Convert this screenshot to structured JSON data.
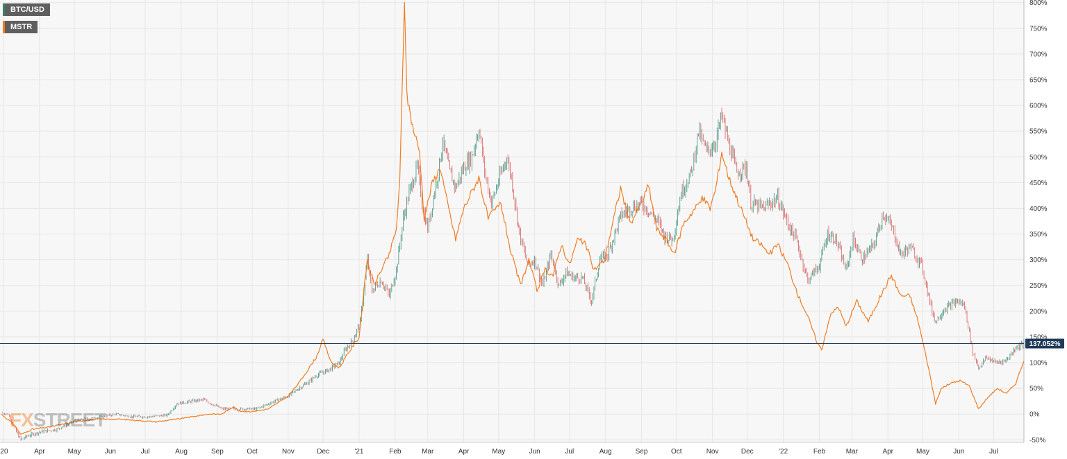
{
  "legend": [
    {
      "label": "BTC/USD",
      "color": "#3c7d6f"
    },
    {
      "label": "MSTR",
      "color": "#ef7d22"
    }
  ],
  "watermark": {
    "part1": "FX",
    "part2": "STREET"
  },
  "current_value_label": "137.052%",
  "colors": {
    "btc_up": "#3c8f7a",
    "btc_down": "#d65a5a",
    "mstr": "#ef7d22",
    "reference_line": "#1f3a5a",
    "grid": "#e6e6e6",
    "plot_bg": "#f7f7f7"
  },
  "chart_data": {
    "type": "line",
    "y_unit": "%",
    "ylim": [
      -55,
      805
    ],
    "y_ticks": [
      -50,
      0,
      50,
      100,
      150,
      200,
      250,
      300,
      350,
      400,
      450,
      500,
      550,
      600,
      650,
      700,
      750,
      800
    ],
    "y_tick_labels": [
      "-50%",
      "0%",
      "50%",
      "100%",
      "150%",
      "200%",
      "250%",
      "300%",
      "350%",
      "400%",
      "450%",
      "500%",
      "550%",
      "600%",
      "650%",
      "700%",
      "750%",
      "800%"
    ],
    "x_range": [
      "2020-02-27",
      "2022-07-27"
    ],
    "x_ticks": [
      {
        "date": "2020-03-01",
        "label": "'20"
      },
      {
        "date": "2020-04-01",
        "label": "Apr"
      },
      {
        "date": "2020-05-01",
        "label": "May"
      },
      {
        "date": "2020-06-01",
        "label": "Jun"
      },
      {
        "date": "2020-07-01",
        "label": "Jul"
      },
      {
        "date": "2020-08-01",
        "label": "Aug"
      },
      {
        "date": "2020-09-01",
        "label": "Sep"
      },
      {
        "date": "2020-10-01",
        "label": "Oct"
      },
      {
        "date": "2020-11-01",
        "label": "Nov"
      },
      {
        "date": "2020-12-01",
        "label": "Dec"
      },
      {
        "date": "2021-01-01",
        "label": "'21"
      },
      {
        "date": "2021-02-01",
        "label": "Feb"
      },
      {
        "date": "2021-03-01",
        "label": "Mar"
      },
      {
        "date": "2021-04-01",
        "label": "Apr"
      },
      {
        "date": "2021-05-01",
        "label": "May"
      },
      {
        "date": "2021-06-01",
        "label": "Jun"
      },
      {
        "date": "2021-07-01",
        "label": "Jul"
      },
      {
        "date": "2021-08-01",
        "label": "Aug"
      },
      {
        "date": "2021-09-01",
        "label": "Sep"
      },
      {
        "date": "2021-10-01",
        "label": "Oct"
      },
      {
        "date": "2021-11-01",
        "label": "Nov"
      },
      {
        "date": "2021-12-01",
        "label": "Dec"
      },
      {
        "date": "2022-01-01",
        "label": "'22"
      },
      {
        "date": "2022-02-01",
        "label": "Feb"
      },
      {
        "date": "2022-03-01",
        "label": "Mar"
      },
      {
        "date": "2022-04-01",
        "label": "Apr"
      },
      {
        "date": "2022-05-01",
        "label": "May"
      },
      {
        "date": "2022-06-01",
        "label": "Jun"
      },
      {
        "date": "2022-07-01",
        "label": "Jul"
      }
    ],
    "reference_line": {
      "value": 137.052,
      "label": "137.052%"
    },
    "grid": true,
    "legend_position": "top-left",
    "series": [
      {
        "name": "BTC/USD",
        "style": "candlestick",
        "points": [
          [
            "2020-02-28",
            2
          ],
          [
            "2020-03-05",
            0
          ],
          [
            "2020-03-12",
            -35
          ],
          [
            "2020-03-16",
            -50
          ],
          [
            "2020-03-22",
            -42
          ],
          [
            "2020-04-01",
            -35
          ],
          [
            "2020-04-15",
            -30
          ],
          [
            "2020-04-30",
            -15
          ],
          [
            "2020-05-10",
            -10
          ],
          [
            "2020-05-25",
            -5
          ],
          [
            "2020-06-05",
            0
          ],
          [
            "2020-06-20",
            -5
          ],
          [
            "2020-07-05",
            -5
          ],
          [
            "2020-07-20",
            -2
          ],
          [
            "2020-07-28",
            20
          ],
          [
            "2020-08-10",
            25
          ],
          [
            "2020-08-20",
            28
          ],
          [
            "2020-09-05",
            10
          ],
          [
            "2020-09-20",
            10
          ],
          [
            "2020-10-05",
            10
          ],
          [
            "2020-10-20",
            25
          ],
          [
            "2020-11-01",
            35
          ],
          [
            "2020-11-10",
            50
          ],
          [
            "2020-11-20",
            65
          ],
          [
            "2020-11-25",
            75
          ],
          [
            "2020-12-05",
            85
          ],
          [
            "2020-12-15",
            100
          ],
          [
            "2020-12-20",
            125
          ],
          [
            "2020-12-27",
            145
          ],
          [
            "2021-01-02",
            180
          ],
          [
            "2021-01-08",
            300
          ],
          [
            "2021-01-12",
            240
          ],
          [
            "2021-01-20",
            260
          ],
          [
            "2021-01-27",
            230
          ],
          [
            "2021-02-02",
            280
          ],
          [
            "2021-02-08",
            380
          ],
          [
            "2021-02-13",
            430
          ],
          [
            "2021-02-20",
            480
          ],
          [
            "2021-02-25",
            400
          ],
          [
            "2021-03-01",
            360
          ],
          [
            "2021-03-10",
            470
          ],
          [
            "2021-03-14",
            530
          ],
          [
            "2021-03-20",
            470
          ],
          [
            "2021-03-25",
            440
          ],
          [
            "2021-04-01",
            480
          ],
          [
            "2021-04-08",
            500
          ],
          [
            "2021-04-14",
            555
          ],
          [
            "2021-04-20",
            460
          ],
          [
            "2021-04-25",
            410
          ],
          [
            "2021-05-02",
            460
          ],
          [
            "2021-05-08",
            500
          ],
          [
            "2021-05-12",
            460
          ],
          [
            "2021-05-19",
            350
          ],
          [
            "2021-05-26",
            290
          ],
          [
            "2021-06-01",
            300
          ],
          [
            "2021-06-08",
            250
          ],
          [
            "2021-06-15",
            310
          ],
          [
            "2021-06-22",
            250
          ],
          [
            "2021-06-28",
            275
          ],
          [
            "2021-07-05",
            265
          ],
          [
            "2021-07-12",
            265
          ],
          [
            "2021-07-20",
            220
          ],
          [
            "2021-07-27",
            300
          ],
          [
            "2021-08-03",
            310
          ],
          [
            "2021-08-14",
            385
          ],
          [
            "2021-08-22",
            400
          ],
          [
            "2021-09-01",
            410
          ],
          [
            "2021-09-07",
            395
          ],
          [
            "2021-09-15",
            375
          ],
          [
            "2021-09-21",
            345
          ],
          [
            "2021-09-28",
            340
          ],
          [
            "2021-10-05",
            430
          ],
          [
            "2021-10-14",
            470
          ],
          [
            "2021-10-20",
            550
          ],
          [
            "2021-10-27",
            510
          ],
          [
            "2021-11-03",
            525
          ],
          [
            "2021-11-09",
            580
          ],
          [
            "2021-11-15",
            525
          ],
          [
            "2021-11-22",
            470
          ],
          [
            "2021-11-30",
            480
          ],
          [
            "2021-12-04",
            410
          ],
          [
            "2021-12-15",
            400
          ],
          [
            "2021-12-27",
            420
          ],
          [
            "2022-01-05",
            370
          ],
          [
            "2022-01-12",
            340
          ],
          [
            "2022-01-22",
            260
          ],
          [
            "2022-02-01",
            290
          ],
          [
            "2022-02-08",
            350
          ],
          [
            "2022-02-15",
            340
          ],
          [
            "2022-02-24",
            280
          ],
          [
            "2022-03-02",
            340
          ],
          [
            "2022-03-10",
            300
          ],
          [
            "2022-03-20",
            330
          ],
          [
            "2022-03-28",
            390
          ],
          [
            "2022-04-05",
            360
          ],
          [
            "2022-04-12",
            310
          ],
          [
            "2022-04-20",
            325
          ],
          [
            "2022-04-30",
            290
          ],
          [
            "2022-05-09",
            200
          ],
          [
            "2022-05-12",
            180
          ],
          [
            "2022-05-20",
            205
          ],
          [
            "2022-05-31",
            220
          ],
          [
            "2022-06-06",
            210
          ],
          [
            "2022-06-13",
            120
          ],
          [
            "2022-06-18",
            90
          ],
          [
            "2022-06-25",
            110
          ],
          [
            "2022-07-03",
            100
          ],
          [
            "2022-07-12",
            105
          ],
          [
            "2022-07-20",
            130
          ],
          [
            "2022-07-27",
            137
          ]
        ]
      },
      {
        "name": "MSTR",
        "style": "line",
        "points": [
          [
            "2020-02-28",
            0
          ],
          [
            "2020-03-10",
            -20
          ],
          [
            "2020-03-16",
            -40
          ],
          [
            "2020-03-25",
            -30
          ],
          [
            "2020-04-10",
            -25
          ],
          [
            "2020-05-01",
            -15
          ],
          [
            "2020-05-20",
            -10
          ],
          [
            "2020-06-10",
            -10
          ],
          [
            "2020-07-10",
            -15
          ],
          [
            "2020-07-28",
            -10
          ],
          [
            "2020-08-11",
            -5
          ],
          [
            "2020-08-25",
            0
          ],
          [
            "2020-09-05",
            0
          ],
          [
            "2020-09-15",
            15
          ],
          [
            "2020-09-20",
            5
          ],
          [
            "2020-10-01",
            5
          ],
          [
            "2020-10-15",
            10
          ],
          [
            "2020-11-01",
            35
          ],
          [
            "2020-11-10",
            60
          ],
          [
            "2020-11-25",
            110
          ],
          [
            "2020-12-01",
            145
          ],
          [
            "2020-12-08",
            100
          ],
          [
            "2020-12-15",
            90
          ],
          [
            "2020-12-23",
            120
          ],
          [
            "2021-01-01",
            150
          ],
          [
            "2021-01-08",
            300
          ],
          [
            "2021-01-14",
            250
          ],
          [
            "2021-01-20",
            280
          ],
          [
            "2021-01-27",
            310
          ],
          [
            "2021-02-02",
            360
          ],
          [
            "2021-02-05",
            450
          ],
          [
            "2021-02-09",
            810
          ],
          [
            "2021-02-11",
            620
          ],
          [
            "2021-02-16",
            560
          ],
          [
            "2021-02-22",
            510
          ],
          [
            "2021-02-26",
            380
          ],
          [
            "2021-03-05",
            450
          ],
          [
            "2021-03-12",
            480
          ],
          [
            "2021-03-17",
            420
          ],
          [
            "2021-03-25",
            340
          ],
          [
            "2021-04-01",
            400
          ],
          [
            "2021-04-14",
            460
          ],
          [
            "2021-04-22",
            380
          ],
          [
            "2021-05-03",
            410
          ],
          [
            "2021-05-12",
            310
          ],
          [
            "2021-05-20",
            250
          ],
          [
            "2021-05-27",
            300
          ],
          [
            "2021-06-03",
            240
          ],
          [
            "2021-06-10",
            280
          ],
          [
            "2021-06-17",
            270
          ],
          [
            "2021-06-24",
            330
          ],
          [
            "2021-07-01",
            290
          ],
          [
            "2021-07-08",
            340
          ],
          [
            "2021-07-15",
            330
          ],
          [
            "2021-07-22",
            280
          ],
          [
            "2021-07-31",
            300
          ],
          [
            "2021-08-09",
            390
          ],
          [
            "2021-08-14",
            440
          ],
          [
            "2021-08-22",
            370
          ],
          [
            "2021-09-01",
            410
          ],
          [
            "2021-09-07",
            445
          ],
          [
            "2021-09-14",
            360
          ],
          [
            "2021-09-22",
            340
          ],
          [
            "2021-09-29",
            310
          ],
          [
            "2021-10-07",
            370
          ],
          [
            "2021-10-17",
            400
          ],
          [
            "2021-10-24",
            420
          ],
          [
            "2021-10-30",
            400
          ],
          [
            "2021-11-04",
            440
          ],
          [
            "2021-11-09",
            510
          ],
          [
            "2021-11-15",
            460
          ],
          [
            "2021-11-22",
            420
          ],
          [
            "2021-11-29",
            380
          ],
          [
            "2021-12-06",
            340
          ],
          [
            "2021-12-13",
            330
          ],
          [
            "2021-12-20",
            310
          ],
          [
            "2021-12-27",
            330
          ],
          [
            "2022-01-05",
            290
          ],
          [
            "2022-01-12",
            240
          ],
          [
            "2022-01-22",
            190
          ],
          [
            "2022-01-30",
            140
          ],
          [
            "2022-02-03",
            125
          ],
          [
            "2022-02-10",
            190
          ],
          [
            "2022-02-17",
            210
          ],
          [
            "2022-02-24",
            170
          ],
          [
            "2022-03-05",
            220
          ],
          [
            "2022-03-15",
            180
          ],
          [
            "2022-03-28",
            240
          ],
          [
            "2022-04-04",
            270
          ],
          [
            "2022-04-12",
            230
          ],
          [
            "2022-04-20",
            230
          ],
          [
            "2022-04-27",
            180
          ],
          [
            "2022-05-05",
            100
          ],
          [
            "2022-05-12",
            20
          ],
          [
            "2022-05-17",
            50
          ],
          [
            "2022-05-25",
            60
          ],
          [
            "2022-06-02",
            65
          ],
          [
            "2022-06-10",
            55
          ],
          [
            "2022-06-18",
            10
          ],
          [
            "2022-06-25",
            30
          ],
          [
            "2022-07-04",
            50
          ],
          [
            "2022-07-12",
            40
          ],
          [
            "2022-07-20",
            60
          ],
          [
            "2022-07-27",
            105
          ]
        ]
      }
    ]
  }
}
